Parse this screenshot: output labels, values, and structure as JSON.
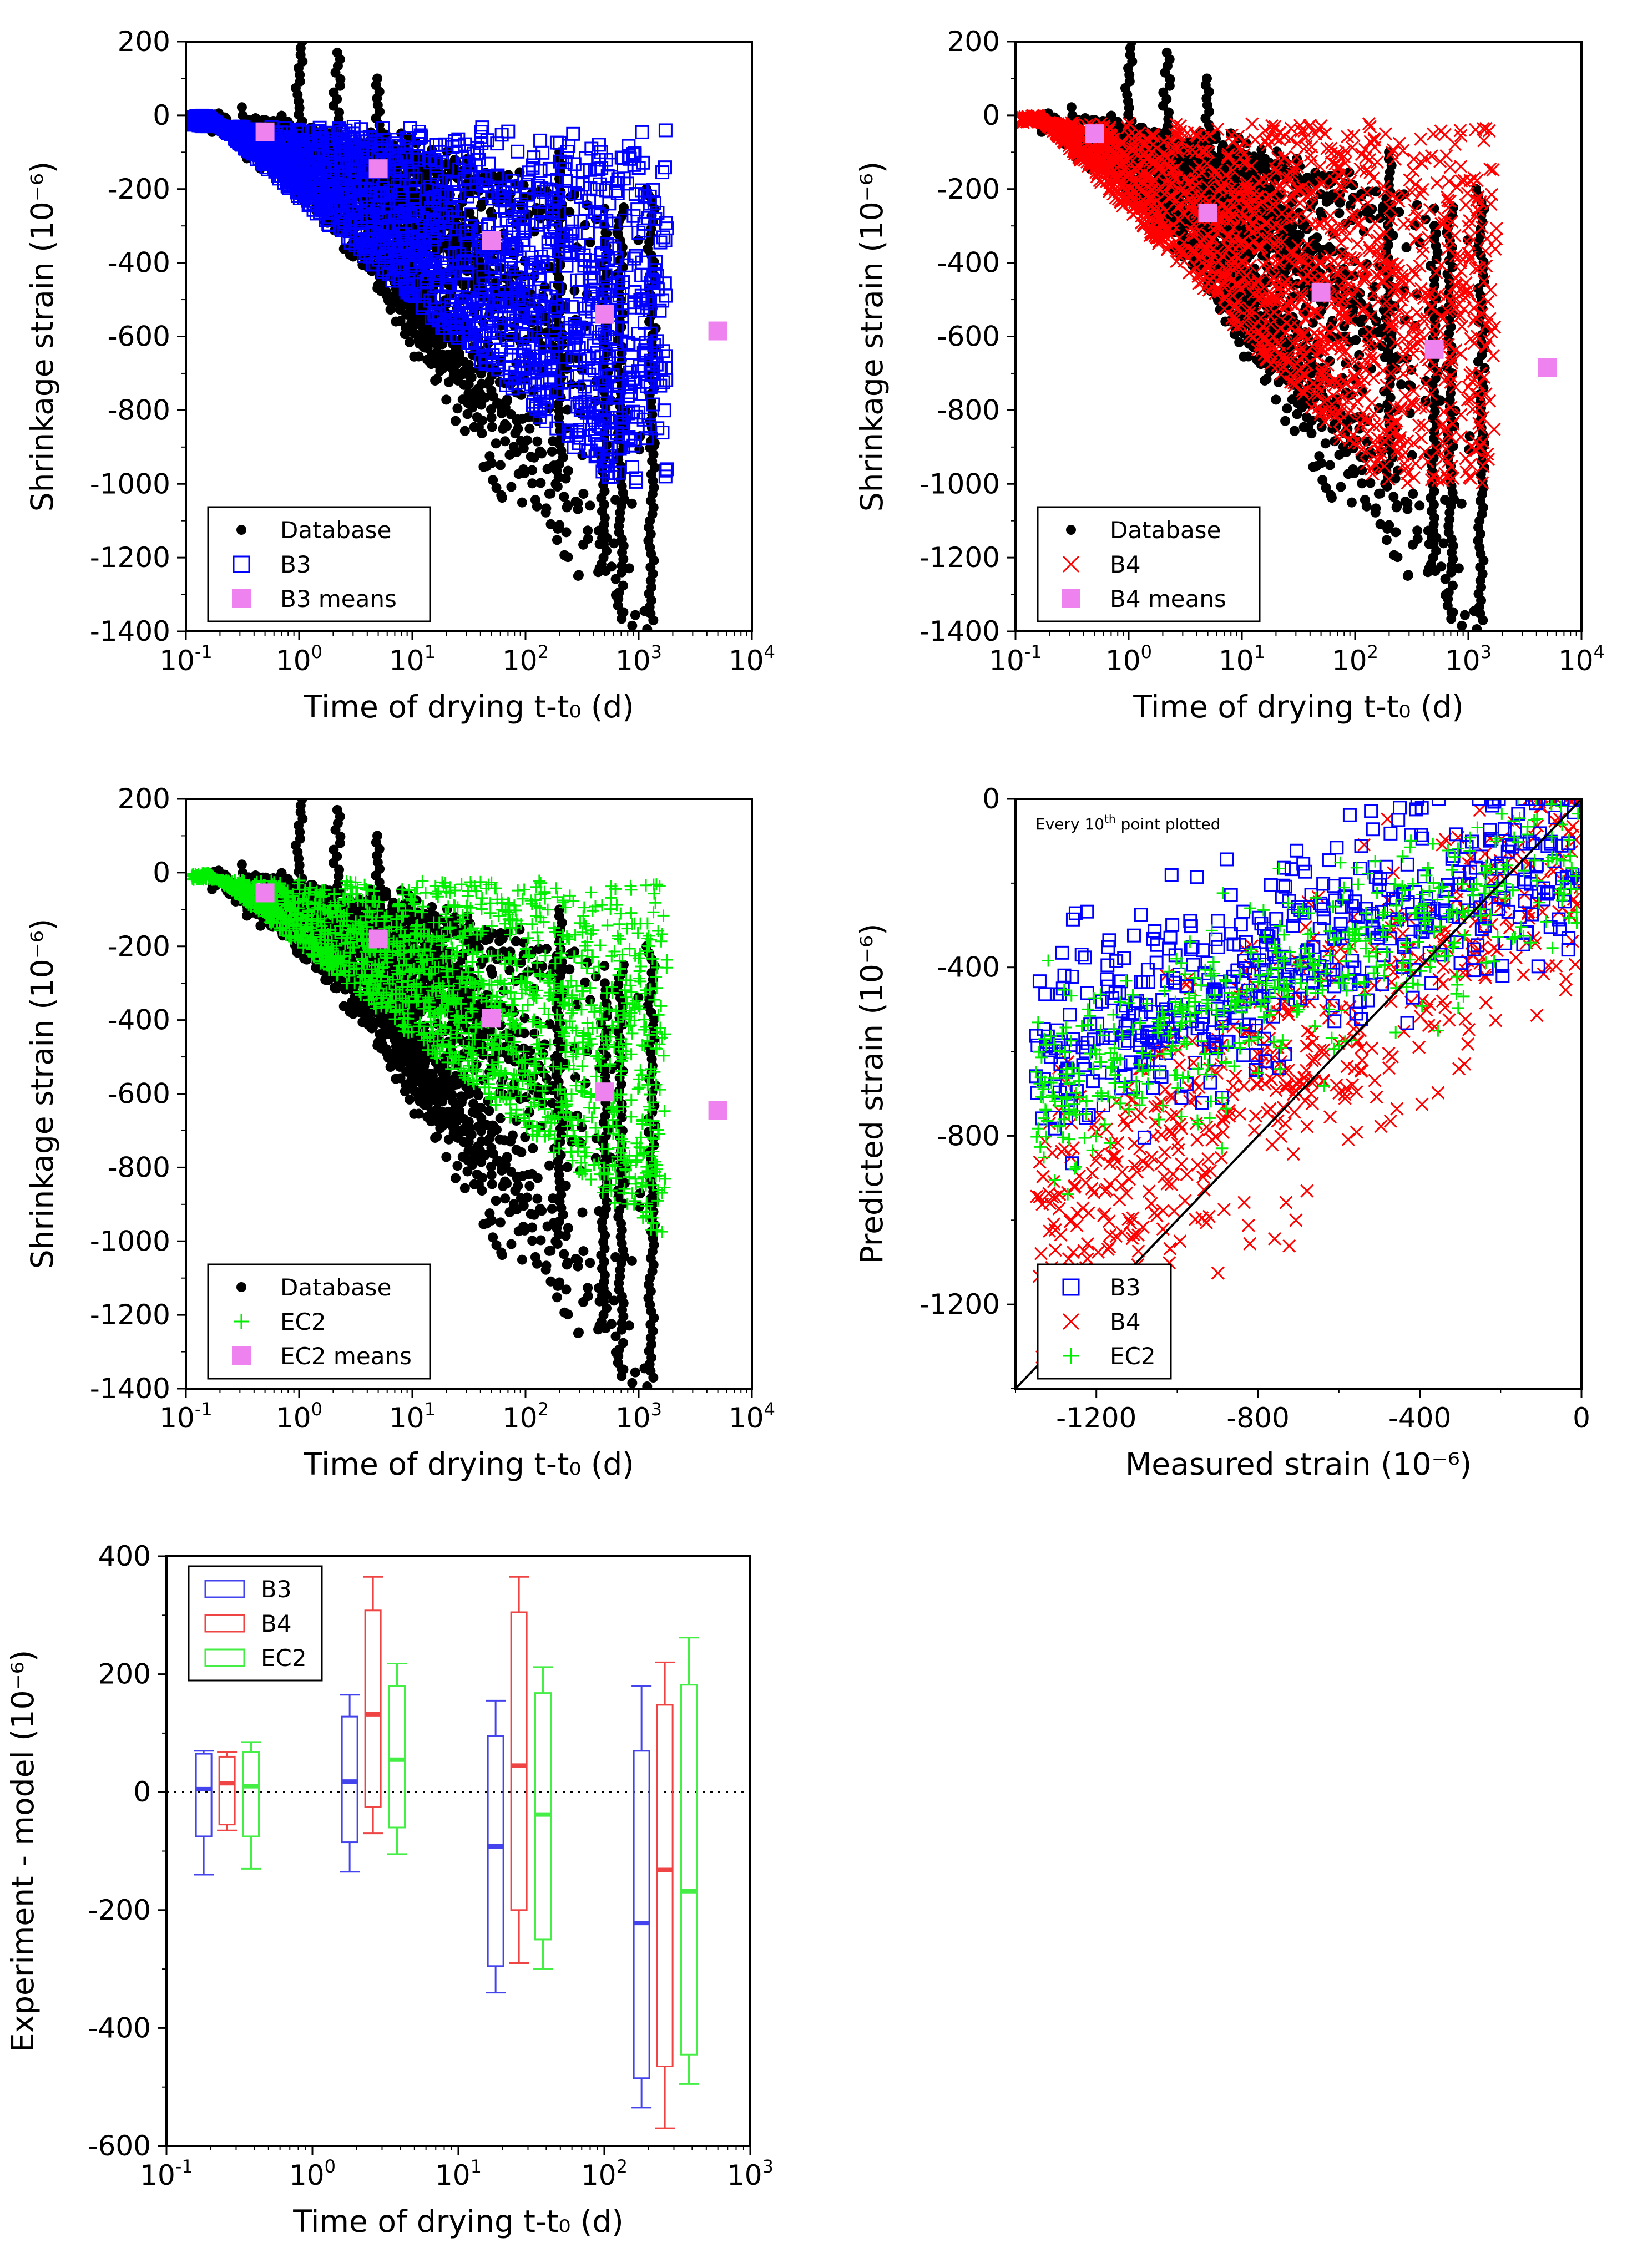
{
  "colors": {
    "database": "#000000",
    "b3": "#0000ff",
    "b4": "#ff0000",
    "ec2": "#00ee00",
    "means": "#ee82ee",
    "b3_box": "#4444ee",
    "b4_box": "#ee4444",
    "ec2_box": "#44ee44"
  },
  "chart_data": [
    {
      "id": "panel-b3",
      "type": "scatter",
      "xscale": "log",
      "xlim": [
        0.1,
        10000
      ],
      "ylim": [
        -1400,
        200
      ],
      "xlabel": "Time of drying t-t₀ (d)",
      "ylabel": "Shrinkage strain (10⁻⁶)",
      "xticks": [
        {
          "base": "10",
          "exp": "-1"
        },
        {
          "base": "10",
          "exp": "0"
        },
        {
          "base": "10",
          "exp": "1"
        },
        {
          "base": "10",
          "exp": "2"
        },
        {
          "base": "10",
          "exp": "3"
        },
        {
          "base": "10",
          "exp": "4"
        }
      ],
      "yticks": [
        "200",
        "0",
        "-200",
        "-400",
        "-600",
        "-800",
        "-1000",
        "-1200",
        "-1400"
      ],
      "legend": [
        {
          "label": "Database",
          "marker": "dot"
        },
        {
          "label": "B3",
          "marker": "square"
        },
        {
          "label": "B3 means",
          "marker": "filled-square"
        }
      ],
      "model_series": "B3",
      "means": {
        "x": [
          0.5,
          5,
          50,
          500,
          5000
        ],
        "y": [
          -45,
          -145,
          -340,
          -540,
          -585
        ]
      },
      "envelope": {
        "lower_slope_per_decade": -280,
        "upper_offset": -30
      }
    },
    {
      "id": "panel-b4",
      "type": "scatter",
      "xscale": "log",
      "xlim": [
        0.1,
        10000
      ],
      "ylim": [
        -1400,
        200
      ],
      "xlabel": "Time of drying t-t₀ (d)",
      "ylabel": "Shrinkage strain (10⁻⁶)",
      "xticks": [
        {
          "base": "10",
          "exp": "-1"
        },
        {
          "base": "10",
          "exp": "0"
        },
        {
          "base": "10",
          "exp": "1"
        },
        {
          "base": "10",
          "exp": "2"
        },
        {
          "base": "10",
          "exp": "3"
        },
        {
          "base": "10",
          "exp": "4"
        }
      ],
      "yticks": [
        "200",
        "0",
        "-200",
        "-400",
        "-600",
        "-800",
        "-1000",
        "-1200",
        "-1400"
      ],
      "legend": [
        {
          "label": "Database",
          "marker": "dot"
        },
        {
          "label": "B4",
          "marker": "x"
        },
        {
          "label": "B4 means",
          "marker": "filled-square"
        }
      ],
      "model_series": "B4",
      "means": {
        "x": [
          0.5,
          5,
          50,
          500,
          5000
        ],
        "y": [
          -50,
          -265,
          -480,
          -635,
          -685
        ]
      },
      "envelope": {
        "lower_slope_per_decade": -330,
        "upper_offset": -20
      }
    },
    {
      "id": "panel-ec2",
      "type": "scatter",
      "xscale": "log",
      "xlim": [
        0.1,
        10000
      ],
      "ylim": [
        -1400,
        200
      ],
      "xlabel": "Time of drying t-t₀ (d)",
      "ylabel": "Shrinkage strain (10⁻⁶)",
      "xticks": [
        {
          "base": "10",
          "exp": "-1"
        },
        {
          "base": "10",
          "exp": "0"
        },
        {
          "base": "10",
          "exp": "1"
        },
        {
          "base": "10",
          "exp": "2"
        },
        {
          "base": "10",
          "exp": "3"
        },
        {
          "base": "10",
          "exp": "4"
        }
      ],
      "yticks": [
        "200",
        "0",
        "-200",
        "-400",
        "-600",
        "-800",
        "-1000",
        "-1200",
        "-1400"
      ],
      "legend": [
        {
          "label": "Database",
          "marker": "dot"
        },
        {
          "label": "EC2",
          "marker": "plus"
        },
        {
          "label": "EC2 means",
          "marker": "filled-square"
        }
      ],
      "model_series": "EC2",
      "means": {
        "x": [
          0.5,
          5,
          50,
          500,
          5000
        ],
        "y": [
          -55,
          -180,
          -395,
          -595,
          -645
        ]
      },
      "envelope": {
        "lower_slope_per_decade": -250,
        "upper_offset": -20
      }
    },
    {
      "id": "panel-predicted",
      "type": "scatter",
      "xlim": [
        -1400,
        0
      ],
      "ylim": [
        -1400,
        0
      ],
      "xlabel": "Measured strain (10⁻⁶)",
      "ylabel": "Predicted strain (10⁻⁶)",
      "xticks": [
        "-1200",
        "-800",
        "-400",
        "0"
      ],
      "yticks": [
        "0",
        "-400",
        "-800",
        "-1200"
      ],
      "annotation": {
        "text_pre": "Every 10",
        "sup": "th",
        "text_post": " point plotted"
      },
      "identity_line": true,
      "legend": [
        {
          "label": "B3",
          "marker": "square"
        },
        {
          "label": "B4",
          "marker": "x"
        },
        {
          "label": "EC2",
          "marker": "plus"
        }
      ],
      "trend": {
        "B3": {
          "slope": 0.38,
          "intercept": -100,
          "spread": 120
        },
        "B4": {
          "slope": 0.62,
          "intercept": -160,
          "spread": 150
        },
        "EC2": {
          "slope": 0.45,
          "intercept": -110,
          "spread": 110
        }
      }
    },
    {
      "id": "panel-box",
      "type": "box",
      "xscale": "log",
      "xlim": [
        0.1,
        1000
      ],
      "ylim": [
        -600,
        400
      ],
      "xlabel": "Time of drying t-t₀ (d)",
      "ylabel": "Experiment - model (10⁻⁶)",
      "xticks": [
        {
          "base": "10",
          "exp": "-1"
        },
        {
          "base": "10",
          "exp": "0"
        },
        {
          "base": "10",
          "exp": "1"
        },
        {
          "base": "10",
          "exp": "2"
        },
        {
          "base": "10",
          "exp": "3"
        }
      ],
      "yticks": [
        "400",
        "200",
        "0",
        "-200",
        "-400",
        "-600"
      ],
      "zero_line": true,
      "legend": [
        {
          "label": "B3"
        },
        {
          "label": "B4"
        },
        {
          "label": "EC2"
        }
      ],
      "series": [
        {
          "name": "B3",
          "x": [
            0.18,
            1.8,
            18,
            180
          ],
          "whisker_low": [
            -140,
            -135,
            -340,
            -535
          ],
          "q1": [
            -75,
            -85,
            -295,
            -485
          ],
          "median": [
            5,
            18,
            -92,
            -222
          ],
          "q3": [
            65,
            128,
            95,
            70
          ],
          "whisker_high": [
            70,
            165,
            155,
            180
          ]
        },
        {
          "name": "B4",
          "x": [
            0.26,
            2.6,
            26,
            260
          ],
          "whisker_low": [
            -65,
            -70,
            -290,
            -570
          ],
          "q1": [
            -55,
            -25,
            -200,
            -465
          ],
          "median": [
            15,
            132,
            45,
            -132
          ],
          "q3": [
            60,
            308,
            305,
            148
          ],
          "whisker_high": [
            68,
            365,
            365,
            220
          ]
        },
        {
          "name": "EC2",
          "x": [
            0.38,
            3.8,
            38,
            380
          ],
          "whisker_low": [
            -130,
            -105,
            -300,
            -495
          ],
          "q1": [
            -75,
            -60,
            -250,
            -445
          ],
          "median": [
            10,
            55,
            -38,
            -168
          ],
          "q3": [
            68,
            180,
            168,
            182
          ],
          "whisker_high": [
            85,
            218,
            212,
            262
          ]
        }
      ]
    }
  ]
}
